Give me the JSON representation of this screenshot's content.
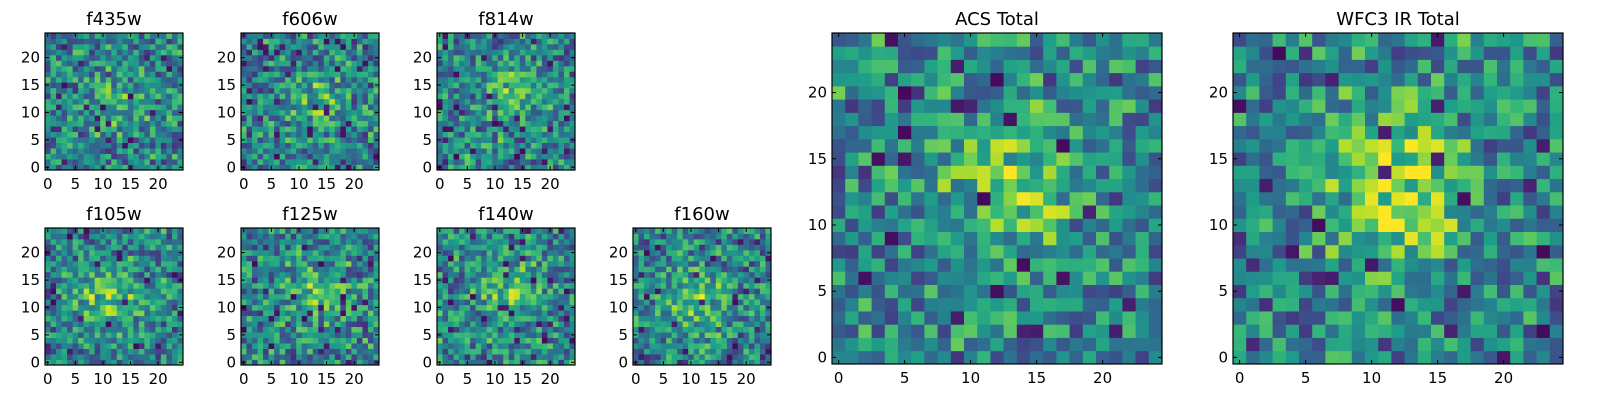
{
  "colormap": "viridis",
  "colors": {
    "frame": "#000000",
    "background": "#ffffff"
  },
  "chart_data": [
    {
      "type": "heatmap",
      "title": "f435w",
      "grid_size": 25,
      "x_ticks": [
        "0",
        "5",
        "10",
        "15",
        "20"
      ],
      "y_ticks": [
        "0",
        "5",
        "10",
        "15",
        "20"
      ],
      "xlim": [
        -0.5,
        24.5
      ],
      "ylim": [
        -0.5,
        24.5
      ],
      "grid": false,
      "seed": 11,
      "bright_center": [
        12,
        11
      ],
      "bright_strength": 0.18
    },
    {
      "type": "heatmap",
      "title": "f606w",
      "grid_size": 25,
      "x_ticks": [
        "0",
        "5",
        "10",
        "15",
        "20"
      ],
      "y_ticks": [
        "0",
        "5",
        "10",
        "15",
        "20"
      ],
      "xlim": [
        -0.5,
        24.5
      ],
      "ylim": [
        -0.5,
        24.5
      ],
      "grid": false,
      "seed": 23,
      "bright_center": [
        13,
        12
      ],
      "bright_strength": 0.18
    },
    {
      "type": "heatmap",
      "title": "f814w",
      "grid_size": 25,
      "x_ticks": [
        "0",
        "5",
        "10",
        "15",
        "20"
      ],
      "y_ticks": [
        "0",
        "5",
        "10",
        "15",
        "20"
      ],
      "xlim": [
        -0.5,
        24.5
      ],
      "ylim": [
        -0.5,
        24.5
      ],
      "grid": false,
      "seed": 37,
      "bright_center": [
        13,
        13
      ],
      "bright_strength": 0.22
    },
    {
      "type": "heatmap",
      "title": "f105w",
      "grid_size": 25,
      "x_ticks": [
        "0",
        "5",
        "10",
        "15",
        "20"
      ],
      "y_ticks": [
        "0",
        "5",
        "10",
        "15",
        "20"
      ],
      "xlim": [
        -0.5,
        24.5
      ],
      "ylim": [
        -0.5,
        24.5
      ],
      "grid": false,
      "seed": 41,
      "bright_center": [
        11,
        12
      ],
      "bright_strength": 0.28
    },
    {
      "type": "heatmap",
      "title": "f125w",
      "grid_size": 25,
      "x_ticks": [
        "0",
        "5",
        "10",
        "15",
        "20"
      ],
      "y_ticks": [
        "0",
        "5",
        "10",
        "15",
        "20"
      ],
      "xlim": [
        -0.5,
        24.5
      ],
      "ylim": [
        -0.5,
        24.5
      ],
      "grid": false,
      "seed": 53,
      "bright_center": [
        13,
        13
      ],
      "bright_strength": 0.22
    },
    {
      "type": "heatmap",
      "title": "f140w",
      "grid_size": 25,
      "x_ticks": [
        "0",
        "5",
        "10",
        "15",
        "20"
      ],
      "y_ticks": [
        "0",
        "5",
        "10",
        "15",
        "20"
      ],
      "xlim": [
        -0.5,
        24.5
      ],
      "ylim": [
        -0.5,
        24.5
      ],
      "grid": false,
      "seed": 67,
      "bright_center": [
        13,
        13
      ],
      "bright_strength": 0.25
    },
    {
      "type": "heatmap",
      "title": "f160w",
      "grid_size": 25,
      "x_ticks": [
        "0",
        "5",
        "10",
        "15",
        "20"
      ],
      "y_ticks": [
        "0",
        "5",
        "10",
        "15",
        "20"
      ],
      "xlim": [
        -0.5,
        24.5
      ],
      "ylim": [
        -0.5,
        24.5
      ],
      "grid": false,
      "seed": 79,
      "bright_center": [
        11,
        11
      ],
      "bright_strength": 0.28
    },
    {
      "type": "heatmap",
      "title": "ACS Total",
      "grid_size": 25,
      "x_ticks": [
        "0",
        "5",
        "10",
        "15",
        "20"
      ],
      "y_ticks": [
        "0",
        "5",
        "10",
        "15",
        "20"
      ],
      "xlim": [
        -0.5,
        24.5
      ],
      "ylim": [
        -0.5,
        24.5
      ],
      "grid": false,
      "seed": 97,
      "bright_center": [
        13,
        13
      ],
      "bright_strength": 0.3
    },
    {
      "type": "heatmap",
      "title": "WFC3 IR Total",
      "grid_size": 25,
      "x_ticks": [
        "0",
        "5",
        "10",
        "15",
        "20"
      ],
      "y_ticks": [
        "0",
        "5",
        "10",
        "15",
        "20"
      ],
      "xlim": [
        -0.5,
        24.5
      ],
      "ylim": [
        -0.5,
        24.5
      ],
      "grid": false,
      "seed": 113,
      "bright_center": [
        12,
        13
      ],
      "bright_strength": 0.42
    }
  ]
}
